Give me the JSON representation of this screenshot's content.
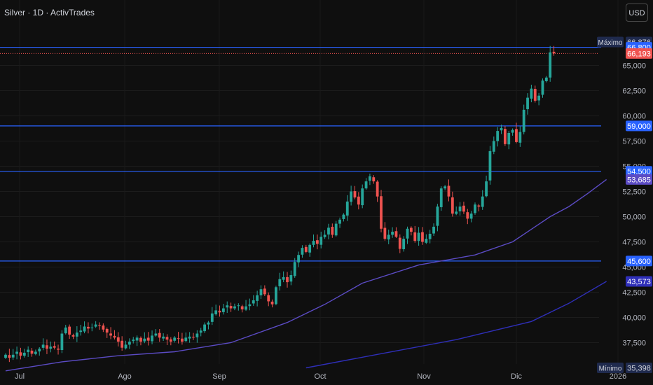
{
  "header": {
    "title": "Silver · 1D · ActivTrades",
    "currency_button": "USD"
  },
  "colors": {
    "background": "#0f0f0f",
    "up": "#26a69a",
    "down": "#ef5350",
    "hline": "#2962ff",
    "ma_fast": "#5b4bc4",
    "ma_slow": "#2f2fb8",
    "text": "#b2b5be"
  },
  "chart_data": {
    "type": "candlestick",
    "instrument": "Silver",
    "interval": "1D",
    "source": "ActivTrades",
    "currency": "USD",
    "y_axis": {
      "ticks": [
        "37,500",
        "40,000",
        "42,500",
        "45,000",
        "47,500",
        "50,000",
        "52,500",
        "55,000",
        "57,500",
        "60,000",
        "62,500",
        "65,000"
      ],
      "range": [
        35,
        67.5
      ]
    },
    "x_axis": {
      "labels": [
        "Jul",
        "Ago",
        "Sep",
        "Oct",
        "Nov",
        "Dic",
        "2026"
      ]
    },
    "horizontal_levels": [
      {
        "value": 66.8,
        "label": "66,800"
      },
      {
        "value": 59.0,
        "label": "59,000"
      },
      {
        "value": 54.5,
        "label": "54,500"
      },
      {
        "value": 45.6,
        "label": "45,600"
      }
    ],
    "price_tags": [
      {
        "name": "Máximo",
        "value": 66.876,
        "label": "66,876"
      },
      {
        "name": "",
        "value": 66.193,
        "label": "66,193"
      },
      {
        "name": "",
        "value": 53.685,
        "label": "53,685"
      },
      {
        "name": "",
        "value": 43.573,
        "label": "43,573"
      },
      {
        "name": "Mínimo",
        "value": 35.398,
        "label": "35,398"
      }
    ],
    "closes": [
      36.3,
      36.0,
      36.3,
      36.6,
      36.2,
      36.5,
      36.8,
      36.4,
      36.6,
      36.9,
      37.3,
      36.9,
      37.1,
      37.0,
      36.8,
      38.4,
      39.0,
      38.3,
      38.1,
      38.5,
      38.7,
      39.1,
      38.9,
      39.0,
      39.3,
      39.2,
      38.8,
      38.5,
      38.2,
      38.0,
      37.6,
      37.0,
      37.3,
      37.6,
      37.8,
      38.0,
      37.6,
      37.9,
      37.7,
      38.2,
      38.4,
      38.0,
      38.1,
      37.8,
      37.6,
      38.0,
      37.9,
      37.6,
      38.0,
      38.1,
      38.0,
      38.4,
      38.7,
      39.3,
      39.5,
      40.4,
      40.7,
      40.5,
      40.9,
      41.2,
      40.9,
      41.1,
      41.2,
      40.8,
      41.1,
      41.3,
      41.7,
      42.2,
      42.8,
      42.3,
      41.6,
      41.3,
      43.0,
      43.8,
      44.0,
      43.5,
      44.2,
      45.5,
      46.2,
      46.9,
      46.5,
      47.2,
      47.6,
      47.3,
      48.0,
      48.2,
      48.9,
      48.2,
      49.3,
      49.7,
      50.2,
      51.5,
      52.5,
      51.9,
      51.2,
      52.8,
      53.5,
      54.0,
      53.5,
      52.0,
      48.8,
      47.8,
      48.2,
      48.5,
      48.0,
      46.8,
      47.8,
      48.8,
      48.5,
      47.6,
      48.4,
      47.5,
      47.8,
      48.3,
      49.0,
      51.0,
      52.8,
      53.0,
      52.0,
      50.3,
      50.5,
      51.0,
      50.5,
      49.8,
      50.3,
      51.2,
      51.0,
      52.0,
      53.5,
      56.5,
      57.5,
      58.5,
      58.8,
      57.2,
      58.3,
      58.6,
      57.4,
      58.4,
      60.6,
      61.8,
      62.7,
      61.5,
      62.0,
      63.5,
      63.8,
      66.3,
      66.2
    ]
  },
  "moving_averages": [
    {
      "points": [
        [
          0,
          34.7
        ],
        [
          15,
          35.6
        ],
        [
          30,
          36.2
        ],
        [
          45,
          36.6
        ],
        [
          60,
          37.5
        ],
        [
          75,
          39.5
        ],
        [
          85,
          41.3
        ],
        [
          95,
          43.4
        ],
        [
          110,
          45.2
        ],
        [
          125,
          46.2
        ],
        [
          135,
          47.5
        ],
        [
          145,
          50.0
        ],
        [
          150,
          51.0
        ],
        [
          155,
          52.3
        ],
        [
          160,
          53.685
        ]
      ]
    },
    {
      "points": [
        [
          80,
          35.0
        ],
        [
          100,
          36.4
        ],
        [
          120,
          37.8
        ],
        [
          140,
          39.6
        ],
        [
          150,
          41.4
        ],
        [
          160,
          43.573
        ]
      ]
    }
  ]
}
